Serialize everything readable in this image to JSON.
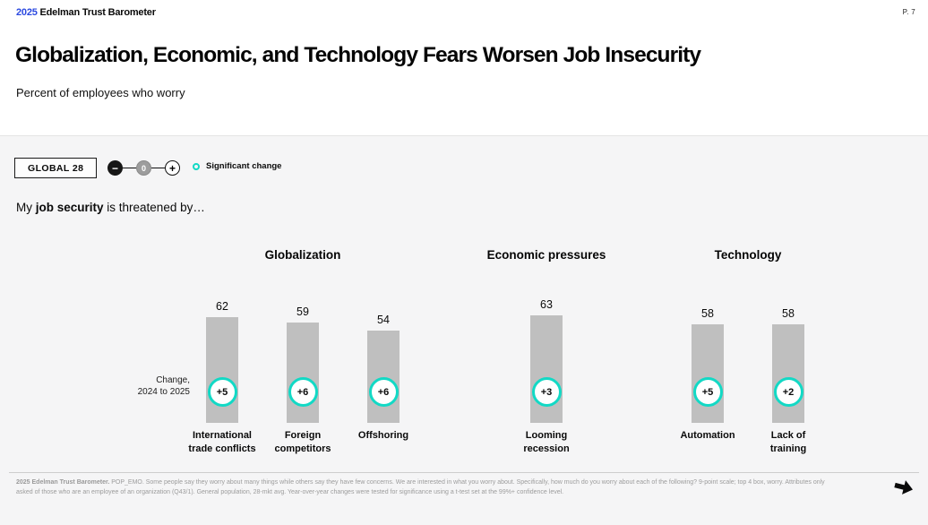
{
  "brand": {
    "year": "2025",
    "name": "Edelman Trust Barometer",
    "page_number": "P. 7"
  },
  "header": {
    "title": "Globalization, Economic, and Technology Fears Worsen Job Insecurity",
    "subtitle": "Percent of employees who worry"
  },
  "toolbar": {
    "market_selector_label": "GLOBAL 28",
    "stepper": {
      "minus": "−",
      "value": "0",
      "plus": "+"
    },
    "legend_significant_label": "Significant change"
  },
  "statement": {
    "prefix": "My ",
    "highlight": "job security",
    "suffix": " is threatened by…"
  },
  "chart_data": {
    "type": "bar",
    "title": "My job security is threatened by…",
    "ylabel": "Percent of employees who worry",
    "ylim": [
      0,
      100
    ],
    "legend": "Significant change",
    "change_label": {
      "line1": "Change,",
      "line2": "2024 to 2025"
    },
    "bar_color": "#bfbfbf",
    "significant_color": "#12d9c5",
    "groups": [
      {
        "label": "Globalization",
        "bars": [
          {
            "label": "International trade conflicts",
            "label_lines": [
              "International",
              "trade conflicts"
            ],
            "value": 62,
            "change": "+5",
            "significant": true
          },
          {
            "label": "Foreign competitors",
            "label_lines": [
              "Foreign",
              "competitors"
            ],
            "value": 59,
            "change": "+6",
            "significant": true
          },
          {
            "label": "Offshoring",
            "label_lines": [
              "Offshoring"
            ],
            "value": 54,
            "change": "+6",
            "significant": true
          }
        ]
      },
      {
        "label": "Economic pressures",
        "bars": [
          {
            "label": "Looming recession",
            "label_lines": [
              "Looming",
              "recession"
            ],
            "value": 63,
            "change": "+3",
            "significant": true
          }
        ]
      },
      {
        "label": "Technology",
        "bars": [
          {
            "label": "Automation",
            "label_lines": [
              "Automation"
            ],
            "value": 58,
            "change": "+5",
            "significant": true
          },
          {
            "label": "Lack of training",
            "label_lines": [
              "Lack of",
              "training"
            ],
            "value": 58,
            "change": "+2",
            "significant": true
          }
        ]
      }
    ]
  },
  "footer": {
    "source_bold": "2025 Edelman Trust Barometer.",
    "source_rest": "  POP_EMO. Some people say they worry about many things while others say they have few concerns. We are interested in what you worry about. Specifically, how much do you worry about each of the following? 9-point scale; top 4 box, worry. Attributes only asked of those who are an employee of an organization (Q43/1). General population, 28-mkt avg. Year-over-year changes were tested for significance using a t-test set at the 99%+ confidence level."
  },
  "colors": {
    "brand_blue": "#2b49e0",
    "accent_teal": "#12d9c5",
    "bar_gray": "#bfbfbf",
    "background": "#f5f5f6"
  }
}
